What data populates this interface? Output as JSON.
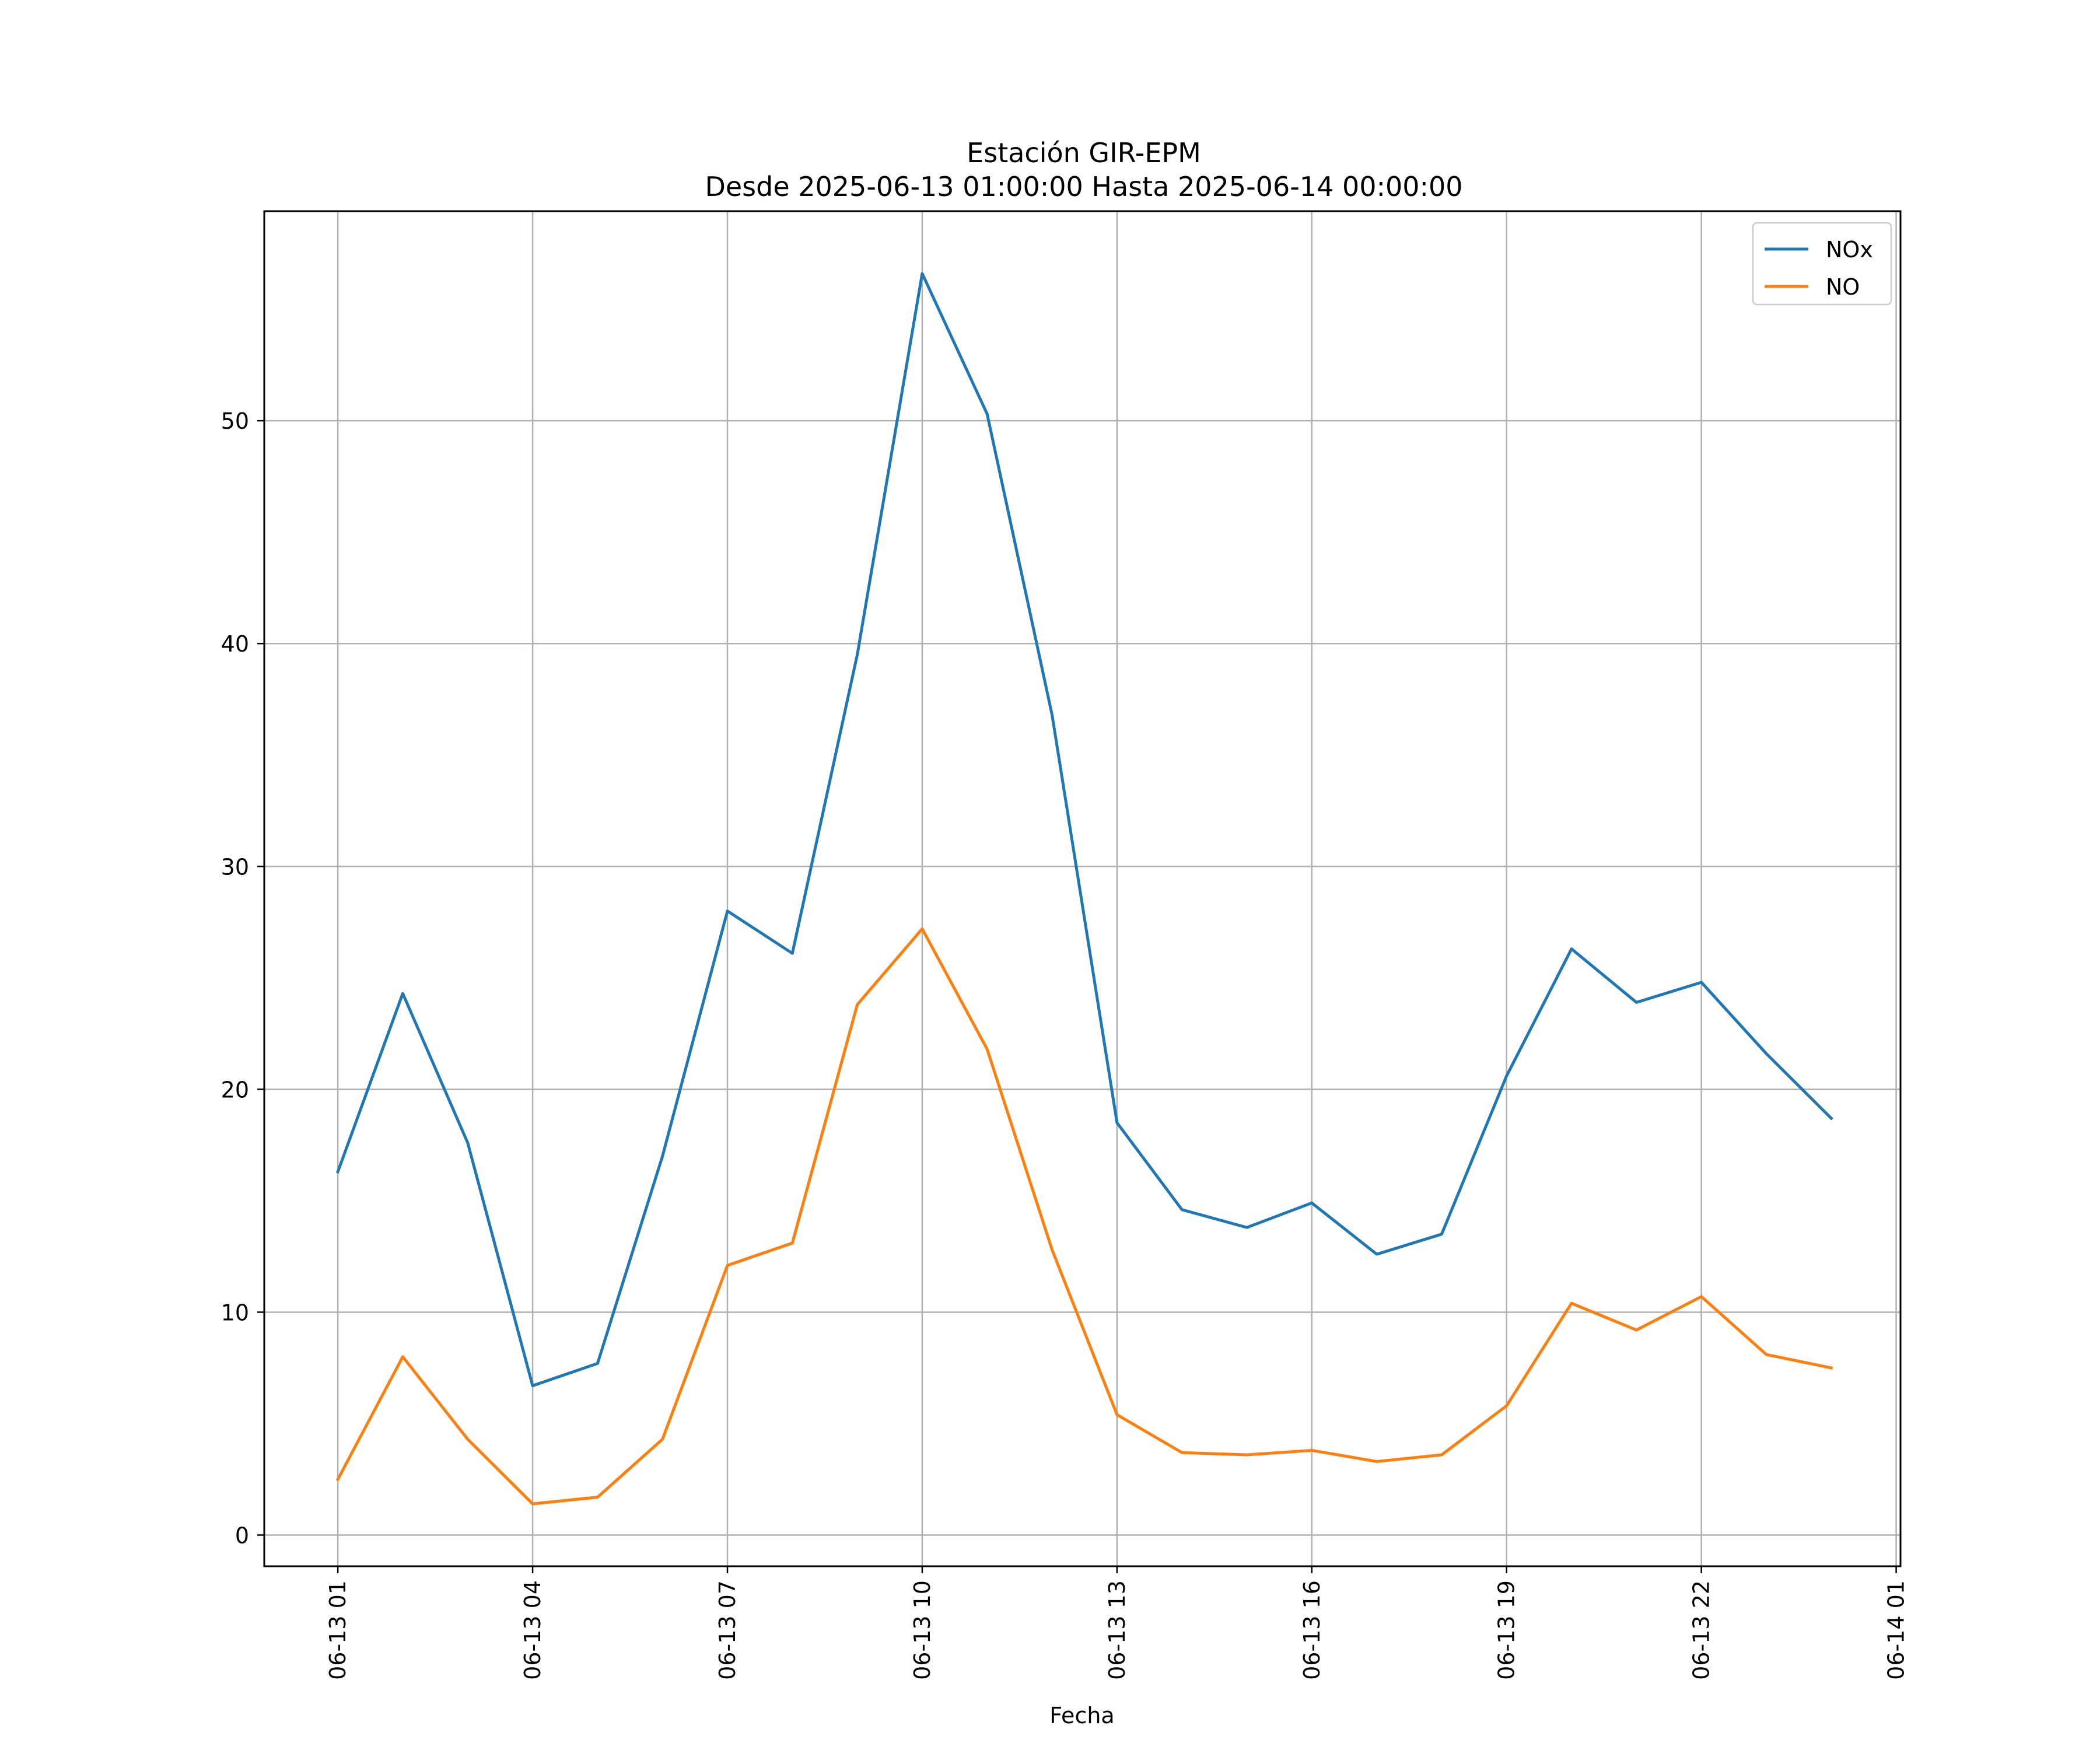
{
  "colors": {
    "nox": "#1f77b4",
    "no": "#ff7f0e",
    "grid": "#b0b0b0",
    "axes": "#000000",
    "legend_border": "#cccccc"
  },
  "chart_data": {
    "type": "line",
    "title_line1": "Estación GIR-EPM",
    "title_line2": "Desde 2025-06-13 01:00:00 Hasta 2025-06-14 00:00:00",
    "xlabel": "Fecha",
    "ylabel": "",
    "x": [
      "2025-06-13 01:00",
      "2025-06-13 02:00",
      "2025-06-13 03:00",
      "2025-06-13 04:00",
      "2025-06-13 05:00",
      "2025-06-13 06:00",
      "2025-06-13 07:00",
      "2025-06-13 08:00",
      "2025-06-13 09:00",
      "2025-06-13 10:00",
      "2025-06-13 11:00",
      "2025-06-13 12:00",
      "2025-06-13 13:00",
      "2025-06-13 14:00",
      "2025-06-13 15:00",
      "2025-06-13 16:00",
      "2025-06-13 17:00",
      "2025-06-13 18:00",
      "2025-06-13 19:00",
      "2025-06-13 20:00",
      "2025-06-13 21:00",
      "2025-06-13 22:00",
      "2025-06-13 23:00",
      "2025-06-14 00:00"
    ],
    "series": [
      {
        "name": "NOx",
        "values": [
          16.3,
          24.3,
          17.6,
          6.7,
          7.7,
          17.0,
          28.0,
          26.1,
          39.5,
          56.6,
          50.3,
          36.8,
          18.5,
          14.6,
          13.8,
          14.9,
          12.6,
          13.5,
          20.6,
          26.3,
          23.9,
          24.8,
          21.6,
          18.7
        ]
      },
      {
        "name": "NO",
        "values": [
          2.5,
          8.0,
          4.3,
          1.4,
          1.7,
          4.3,
          12.1,
          13.1,
          23.8,
          27.2,
          21.8,
          12.8,
          5.4,
          3.7,
          3.6,
          3.8,
          3.3,
          3.6,
          5.8,
          10.4,
          9.2,
          10.7,
          8.1,
          7.5
        ]
      }
    ],
    "xlim": [
      "2025-06-12 23:52",
      "2025-06-14 01:04"
    ],
    "ylim": [
      -1.4,
      59.4
    ],
    "xticks": [
      "06-13 01",
      "06-13 04",
      "06-13 07",
      "06-13 10",
      "06-13 13",
      "06-13 16",
      "06-13 19",
      "06-13 22",
      "06-14 01"
    ],
    "xtick_values": [
      "2025-06-13 01:00",
      "2025-06-13 04:00",
      "2025-06-13 07:00",
      "2025-06-13 10:00",
      "2025-06-13 13:00",
      "2025-06-13 16:00",
      "2025-06-13 19:00",
      "2025-06-13 22:00",
      "2025-06-14 01:00"
    ],
    "yticks": [
      0,
      10,
      20,
      30,
      40,
      50
    ],
    "ytick_labels": [
      "0",
      "10",
      "20",
      "30",
      "40",
      "50"
    ],
    "grid": true,
    "legend_position": "top-right"
  }
}
